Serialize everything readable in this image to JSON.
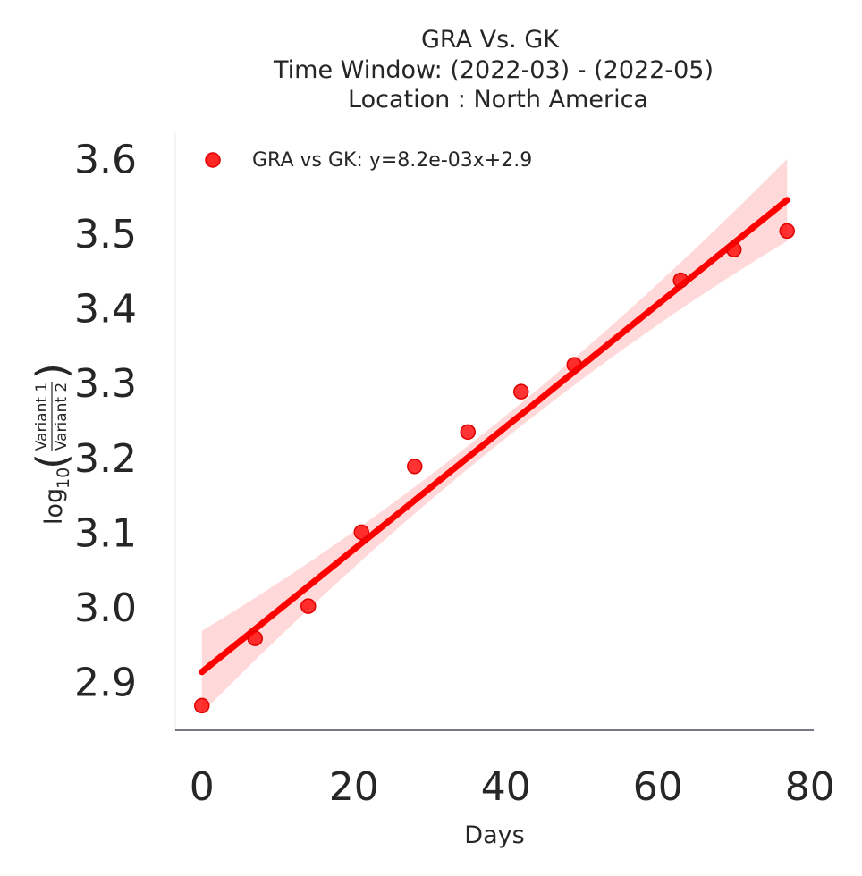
{
  "chart_data": {
    "type": "scatter",
    "title": [
      "GRA Vs. GK",
      "Time Window: (2022-03) - (2022-05)",
      "Location : North America"
    ],
    "xlabel": "Days",
    "ylabel": {
      "prefix": "log",
      "subscript": "10",
      "numerator": "Variant 1",
      "denominator": "Variant 2"
    },
    "xlim": [
      -3.5,
      80.5
    ],
    "ylim": [
      2.835,
      3.635
    ],
    "xticks": [
      0,
      20,
      40,
      60,
      80
    ],
    "xtick_labels": [
      "0",
      "20",
      "40",
      "60",
      "80"
    ],
    "yticks": [
      2.9,
      3.0,
      3.1,
      3.2,
      3.3,
      3.4,
      3.5,
      3.6
    ],
    "ytick_labels": [
      "2.9",
      "3.0",
      "3.1",
      "3.2",
      "3.3",
      "3.4",
      "3.5",
      "3.6"
    ],
    "grid": false,
    "legend_position": "top-left",
    "series": [
      {
        "name": "GRA vs GK: y=8.2e-03x+2.9",
        "color": "#ff0000",
        "x": [
          0,
          7,
          14,
          21,
          28,
          35,
          42,
          49,
          63,
          70,
          77
        ],
        "y": [
          2.868,
          2.958,
          3.001,
          3.1,
          3.188,
          3.234,
          3.288,
          3.324,
          3.437,
          3.478,
          3.503
        ]
      }
    ],
    "fit": {
      "slope": 0.0082,
      "intercept": 2.913,
      "x_range": [
        0,
        77
      ],
      "band_color": "#ffc0c0",
      "band_halfwidth": {
        "x": [
          0,
          38.5,
          77
        ],
        "y": [
          0.055,
          0.015,
          0.055
        ]
      }
    }
  }
}
